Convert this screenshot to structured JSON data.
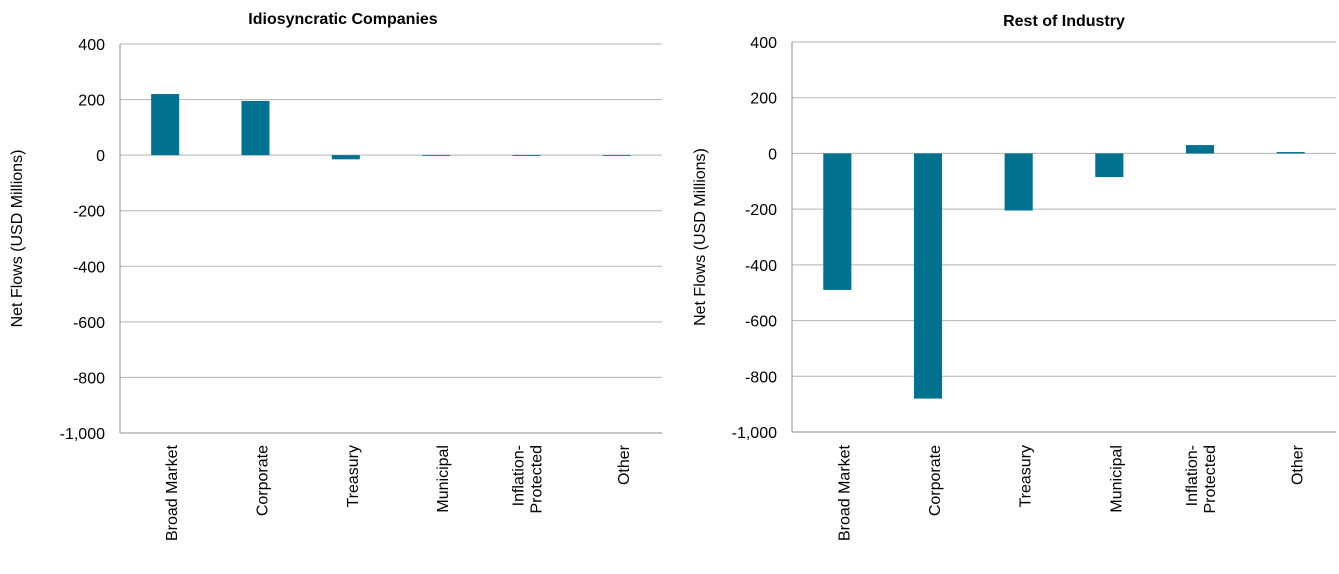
{
  "chart_data": [
    {
      "type": "bar",
      "title": "Idiosyncratic Companies",
      "ylabel": "Net Flows (USD Millions)",
      "xlabel": "",
      "ylim": [
        -1000,
        400
      ],
      "yticks": [
        "400",
        "200",
        "0",
        "-200",
        "-400",
        "-600",
        "-800",
        "-1,000"
      ],
      "categories": [
        "Broad Market",
        "Corporate",
        "Treasury",
        "Municipal",
        "Inflation-\nProtected",
        "Other"
      ],
      "values": [
        220,
        195,
        -15,
        0,
        -3,
        0
      ],
      "grid": true,
      "bar_color": "#00718F"
    },
    {
      "type": "bar",
      "title": "Rest of Industry",
      "ylabel": "Net Flows (USD Millions)",
      "xlabel": "",
      "ylim": [
        -1000,
        400
      ],
      "yticks": [
        "400",
        "200",
        "0",
        "-200",
        "-400",
        "-600",
        "-800",
        "-1,000"
      ],
      "categories": [
        "Broad Market",
        "Corporate",
        "Treasury",
        "Municipal",
        "Inflation-\nProtected",
        "Other"
      ],
      "values": [
        -490,
        -880,
        -205,
        -85,
        30,
        5
      ],
      "grid": true,
      "bar_color": "#00718F"
    }
  ]
}
